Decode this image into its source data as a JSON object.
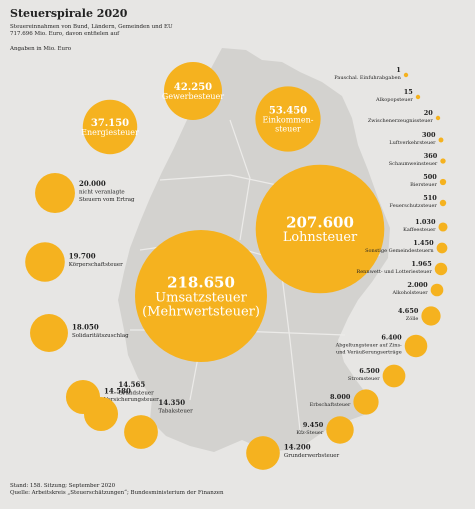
{
  "header": {
    "title": "Steuerspirale 2020",
    "subtitle_line1": "Steuereinnahmen von Bund, Ländern, Gemeinden und EU",
    "subtitle_line2": "717.696 Mio. Euro, davon entfielen auf",
    "unit_note": "Angaben in Mio. Euro"
  },
  "footer": {
    "line1": "Stand: 158. Sitzung; September 2020",
    "line2": "Quelle: Arbeitskreis „Steuerschätzungen“; Bundesministerium der Finanzen"
  },
  "colors": {
    "bubble": "#f5b21f",
    "background": "#e7e6e4",
    "map": "#d3d2cf",
    "map_border": "#ecebe9"
  },
  "chart_data": {
    "type": "bubble-spiral",
    "title": "Steuerspirale 2020",
    "unit": "Mio. Euro",
    "total": 717696,
    "items": [
      {
        "name": "Umsatzsteuer (Mehrwertsteuer)",
        "value": 218650,
        "label": "218.650",
        "name_lines": [
          "Umsatzsteuer",
          "(Mehrwertsteuer)"
        ]
      },
      {
        "name": "Lohnsteuer",
        "value": 207600,
        "label": "207.600",
        "name_lines": [
          "Lohnsteuer"
        ]
      },
      {
        "name": "Einkommensteuer",
        "value": 53450,
        "label": "53.450",
        "name_lines": [
          "Einkommen-",
          "steuer"
        ]
      },
      {
        "name": "Gewerbesteuer",
        "value": 42250,
        "label": "42.250",
        "name_lines": [
          "Gewerbesteuer"
        ]
      },
      {
        "name": "Energiesteuer",
        "value": 37150,
        "label": "37.150",
        "name_lines": [
          "Energiesteuer"
        ]
      },
      {
        "name": "nicht veranlagte Steuern vom Ertrag",
        "value": 20000,
        "label": "20.000",
        "name_lines": [
          "nicht veranlagte",
          "Steuern vom Ertrag"
        ]
      },
      {
        "name": "Körperschaftsteuer",
        "value": 19700,
        "label": "19.700",
        "name_lines": [
          "Körperschaftsteuer"
        ]
      },
      {
        "name": "Solidaritätszuschlag",
        "value": 18050,
        "label": "18.050",
        "name_lines": [
          "Solidaritätszuschlag"
        ]
      },
      {
        "name": "Versicherungsteuer",
        "value": 14580,
        "label": "14.580",
        "name_lines": [
          "Versicherungsteuer"
        ]
      },
      {
        "name": "Grundsteuer",
        "value": 14565,
        "label": "14.565",
        "name_lines": [
          "Grundsteuer"
        ]
      },
      {
        "name": "Tabaksteuer",
        "value": 14350,
        "label": "14.350",
        "name_lines": [
          "Tabaksteuer"
        ]
      },
      {
        "name": "Grunderwerbsteuer",
        "value": 14200,
        "label": "14.200",
        "name_lines": [
          "Grunderwerbsteuer"
        ]
      },
      {
        "name": "Kfz-Steuer",
        "value": 9450,
        "label": "9.450",
        "name_lines": [
          "Kfz-Steuer"
        ]
      },
      {
        "name": "Erbschaftsteuer",
        "value": 8000,
        "label": "8.000",
        "name_lines": [
          "Erbschaftsteuer"
        ]
      },
      {
        "name": "Stromsteuer",
        "value": 6500,
        "label": "6.500",
        "name_lines": [
          "Stromsteuer"
        ]
      },
      {
        "name": "Abgeltungsteuer auf Zins- und Veräußerungserträge",
        "value": 6400,
        "label": "6.400",
        "name_lines": [
          "Abgeltungsteuer auf Zins-",
          "und Veräußerungserträge"
        ]
      },
      {
        "name": "Zölle",
        "value": 4650,
        "label": "4.650",
        "name_lines": [
          "Zölle"
        ]
      },
      {
        "name": "Alkoholsteuer",
        "value": 2000,
        "label": "2.000",
        "name_lines": [
          "Alkoholsteuer"
        ]
      },
      {
        "name": "Rennwett- und Lotteriesteuer",
        "value": 1965,
        "label": "1.965",
        "name_lines": [
          "Rennwett- und Lotteriesteuer"
        ]
      },
      {
        "name": "Sonstige Gemeindesteuern",
        "value": 1450,
        "label": "1.450",
        "name_lines": [
          "Sonstige Gemeindesteuern"
        ]
      },
      {
        "name": "Kaffeesteuer",
        "value": 1030,
        "label": "1.030",
        "name_lines": [
          "Kaffeesteuer"
        ]
      },
      {
        "name": "Feuerschutzsteuer",
        "value": 510,
        "label": "510",
        "name_lines": [
          "Feuerschutzsteuer"
        ]
      },
      {
        "name": "Biersteuer",
        "value": 500,
        "label": "500",
        "name_lines": [
          "Biersteuer"
        ]
      },
      {
        "name": "Schaumweinsteuer",
        "value": 360,
        "label": "360",
        "name_lines": [
          "Schaumweinsteuer"
        ]
      },
      {
        "name": "Luftverkehrsteuer",
        "value": 300,
        "label": "300",
        "name_lines": [
          "Luftverkehrsteuer"
        ]
      },
      {
        "name": "Zwischenerzeugnissteuer",
        "value": 20,
        "label": "20",
        "name_lines": [
          "Zwischenerzeugnissteuer"
        ]
      },
      {
        "name": "Alkopopsteuer",
        "value": 15,
        "label": "15",
        "name_lines": [
          "Alkopopsteuer"
        ]
      },
      {
        "name": "Pauschal. Einfuhrabgaben",
        "value": 1,
        "label": "1",
        "name_lines": [
          "Pauschal. Einfuhrabgaben"
        ]
      }
    ]
  }
}
